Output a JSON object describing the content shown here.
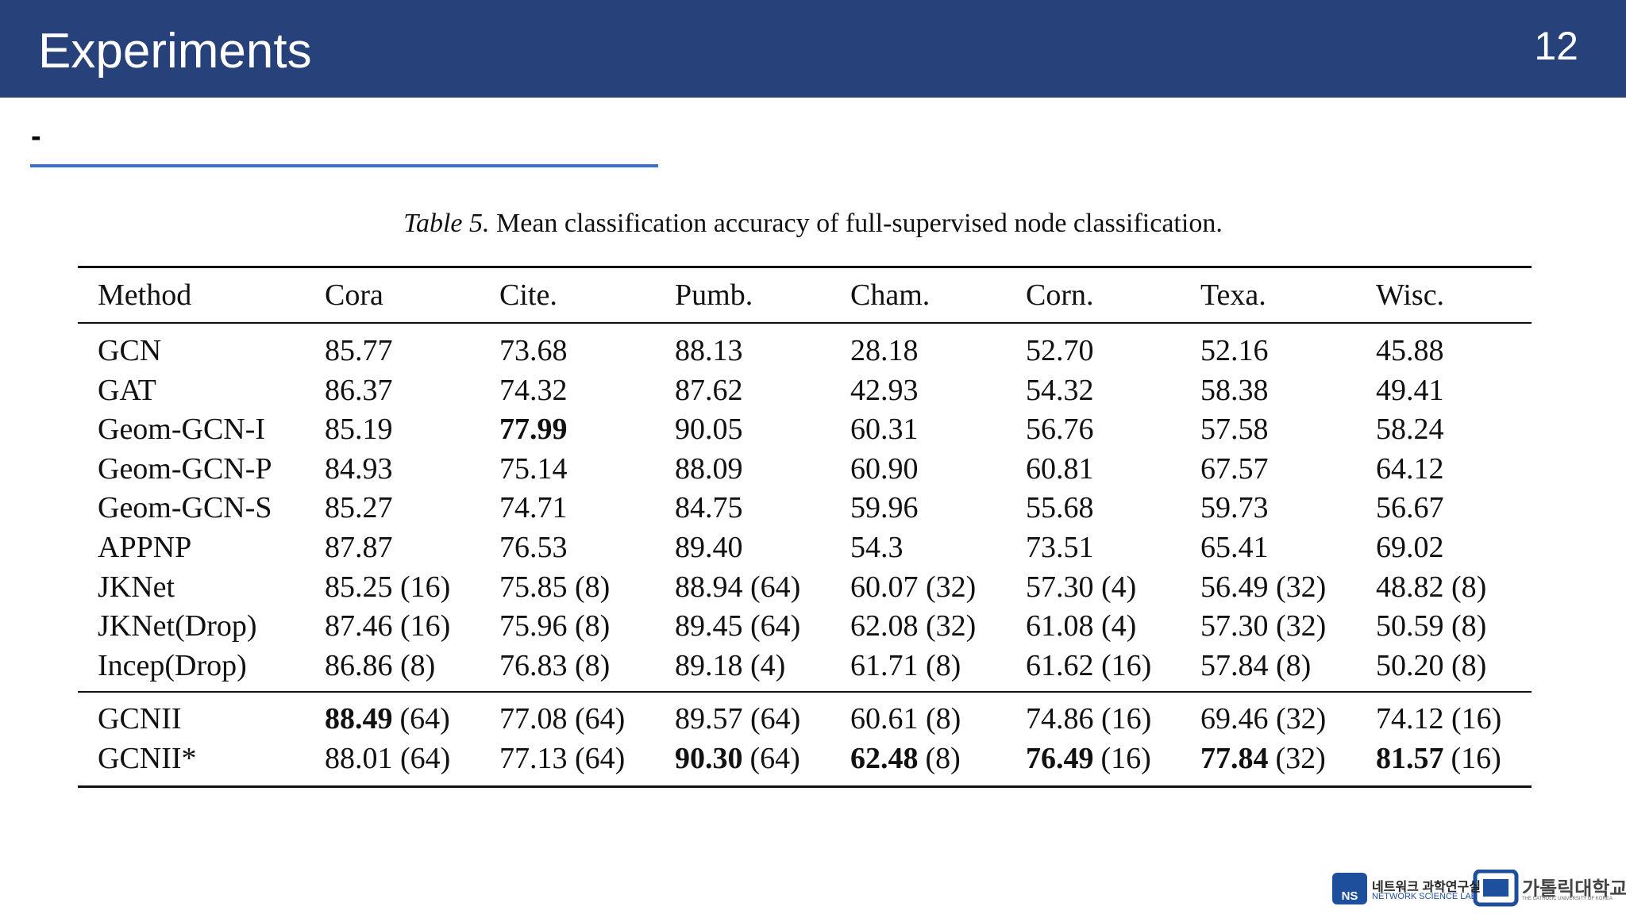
{
  "header": {
    "title": "Experiments",
    "page_number": "12"
  },
  "bullet": "-",
  "table": {
    "caption_label": "Table 5.",
    "caption": "Mean classification accuracy of full-supervised node classification.",
    "header": [
      "Method",
      "Cora",
      "Cite.",
      "Pumb.",
      "Cham.",
      "Corn.",
      "Texa.",
      "Wisc."
    ],
    "rows": [
      [
        "GCN",
        "85.77",
        "73.68",
        "88.13",
        "28.18",
        "52.70",
        "52.16",
        "45.88"
      ],
      [
        "GAT",
        "86.37",
        "74.32",
        "87.62",
        "42.93",
        "54.32",
        "58.38",
        "49.41"
      ],
      [
        "Geom-GCN-I",
        "85.19",
        {
          "bold": "77.99"
        },
        "90.05",
        "60.31",
        "56.76",
        "57.58",
        "58.24"
      ],
      [
        "Geom-GCN-P",
        "84.93",
        "75.14",
        "88.09",
        "60.90",
        "60.81",
        "67.57",
        "64.12"
      ],
      [
        "Geom-GCN-S",
        "85.27",
        "74.71",
        "84.75",
        "59.96",
        "55.68",
        "59.73",
        "56.67"
      ],
      [
        "APPNP",
        "87.87",
        "76.53",
        "89.40",
        "54.3",
        "73.51",
        "65.41",
        "69.02"
      ],
      [
        "JKNet",
        "85.25 (16)",
        "75.85 (8)",
        "88.94 (64)",
        "60.07 (32)",
        "57.30 (4)",
        "56.49 (32)",
        "48.82 (8)"
      ],
      [
        "JKNet(Drop)",
        "87.46 (16)",
        "75.96 (8)",
        "89.45 (64)",
        "62.08 (32)",
        "61.08 (4)",
        "57.30 (32)",
        "50.59 (8)"
      ],
      [
        "Incep(Drop)",
        "86.86 (8)",
        "76.83 (8)",
        "89.18 (4)",
        "61.71 (8)",
        "61.62 (16)",
        "57.84 (8)",
        "50.20 (8)"
      ]
    ],
    "summary_rows": [
      [
        "GCNII",
        {
          "bold": "88.49",
          "text": "(64)"
        },
        "77.08 (64)",
        "89.57 (64)",
        "60.61 (8)",
        "74.86 (16)",
        "69.46 (32)",
        "74.12 (16)"
      ],
      [
        "GCNII*",
        "88.01 (64)",
        "77.13 (64)",
        {
          "bold": "90.30",
          "text": "(64)"
        },
        {
          "bold": "62.48",
          "text": "(8)"
        },
        {
          "bold": "76.49",
          "text": "(16)"
        },
        {
          "bold": "77.84",
          "text": "(32)"
        },
        {
          "bold": "81.57",
          "text": "(16)"
        }
      ]
    ]
  },
  "footer": {
    "lab_korean": "네트워크 과학연구실",
    "lab_english": "NETWORK SCIENCE LAB",
    "lab_logo": "NS",
    "university_korean": "가톨릭대학교",
    "university_english": "THE CATHOLIC UNIVERSITY OF KOREA"
  }
}
